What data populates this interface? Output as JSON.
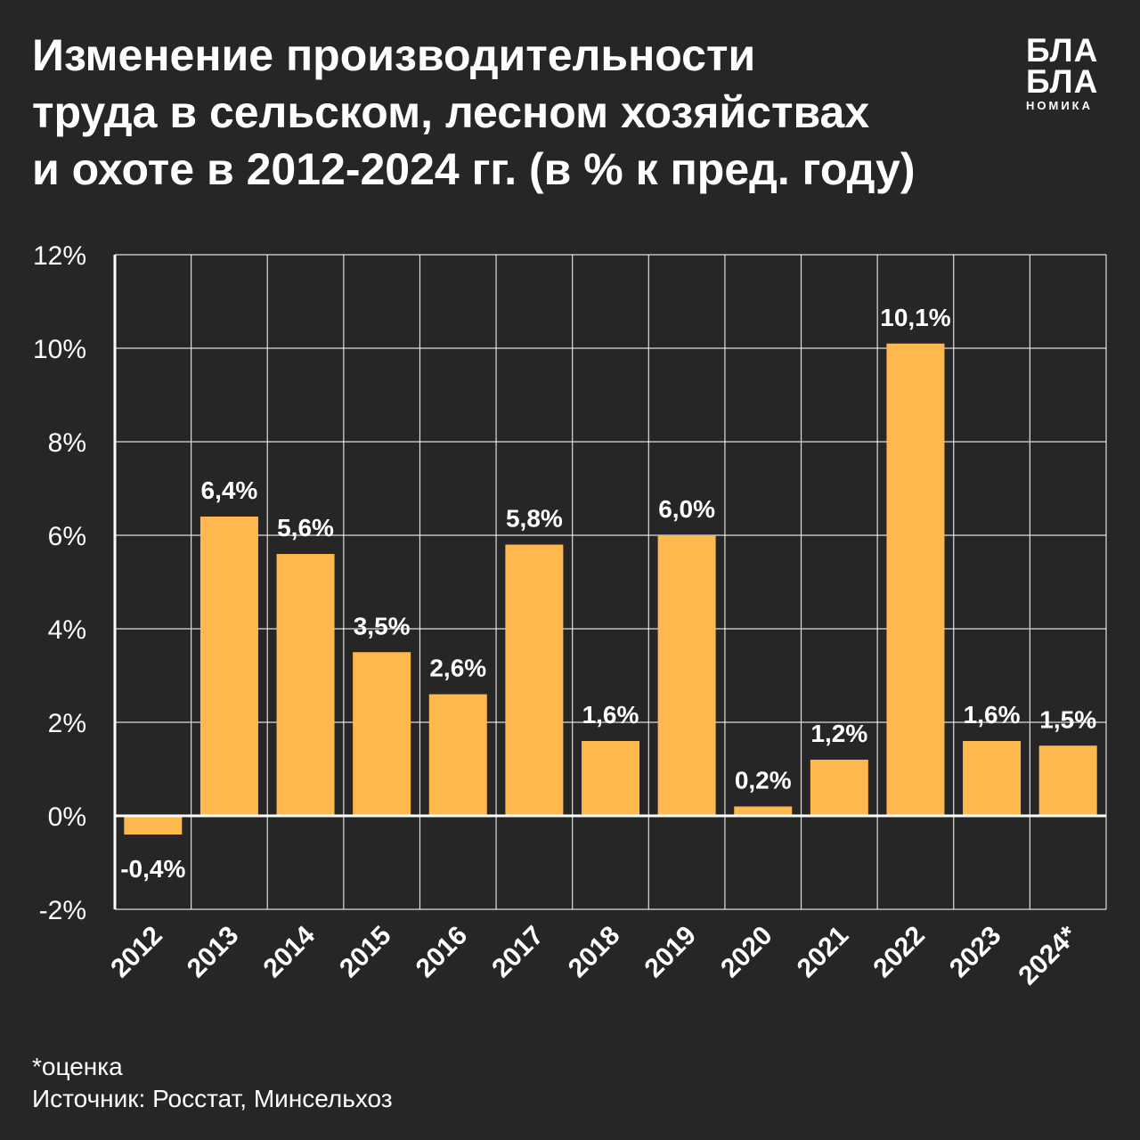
{
  "title": {
    "line1": "Изменение производительности",
    "line2": "труда в сельском, лесном хозяйствах",
    "line3": "и охоте в 2012-2024 гг. (в % к пред. году)"
  },
  "logo": {
    "line1": "БЛА",
    "line2": "БЛА",
    "line3": "НОМИКА"
  },
  "footer": {
    "note": "*оценка",
    "source": "Источник: Росстат, Минсельхоз"
  },
  "colors": {
    "background": "#262626",
    "bar": "#FFB84D",
    "grid": "#ffffff",
    "text": "#ffffff"
  },
  "chart_data": {
    "type": "bar",
    "categories": [
      "2012",
      "2013",
      "2014",
      "2015",
      "2016",
      "2017",
      "2018",
      "2019",
      "2020",
      "2021",
      "2022",
      "2023",
      "2024*"
    ],
    "values": [
      -0.4,
      6.4,
      5.6,
      3.5,
      2.6,
      5.8,
      1.6,
      6.0,
      0.2,
      1.2,
      10.1,
      1.6,
      1.5
    ],
    "value_labels": [
      "-0,4%",
      "6,4%",
      "5,6%",
      "3,5%",
      "2,6%",
      "5,8%",
      "1,6%",
      "6,0%",
      "0,2%",
      "1,2%",
      "10,1%",
      "1,6%",
      "1,5%"
    ],
    "yticks": [
      -2,
      0,
      2,
      4,
      6,
      8,
      10,
      12
    ],
    "ytick_labels": [
      "-2%",
      "0%",
      "2%",
      "4%",
      "6%",
      "8%",
      "10%",
      "12%"
    ],
    "ylim": [
      -2,
      12
    ],
    "grid": true
  }
}
